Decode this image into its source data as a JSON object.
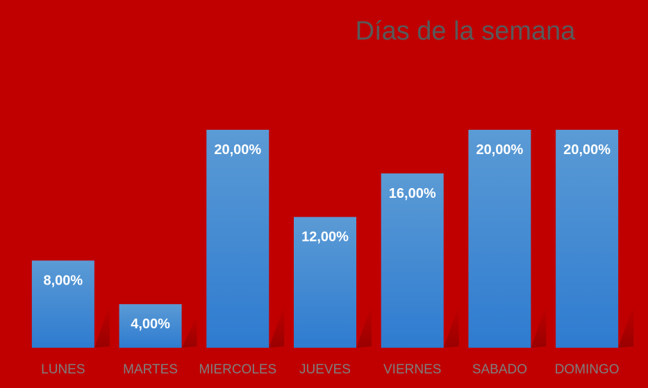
{
  "chart_data": {
    "type": "bar",
    "title": "Días de la semana",
    "categories": [
      "LUNES",
      "MARTES",
      "MIERCOLES",
      "JUEVES",
      "VIERNES",
      "SABADO",
      "DOMINGO"
    ],
    "values": [
      8,
      4,
      20,
      12,
      16,
      20,
      20
    ],
    "data_labels": [
      "8,00%",
      "4,00%",
      "20,00%",
      "12,00%",
      "16,00%",
      "20,00%",
      "20,00%"
    ],
    "value_unit": "%",
    "xlabel": "",
    "ylabel": "",
    "ylim": [
      0,
      20
    ],
    "grid": false,
    "legend": "none",
    "colors": {
      "background": "#c00000",
      "bar_top": "#5b9bd5",
      "bar_bottom": "#2e7bd0",
      "title": "#595959",
      "tick_label": "#7f7f7f",
      "data_label": "#ffffff"
    }
  }
}
